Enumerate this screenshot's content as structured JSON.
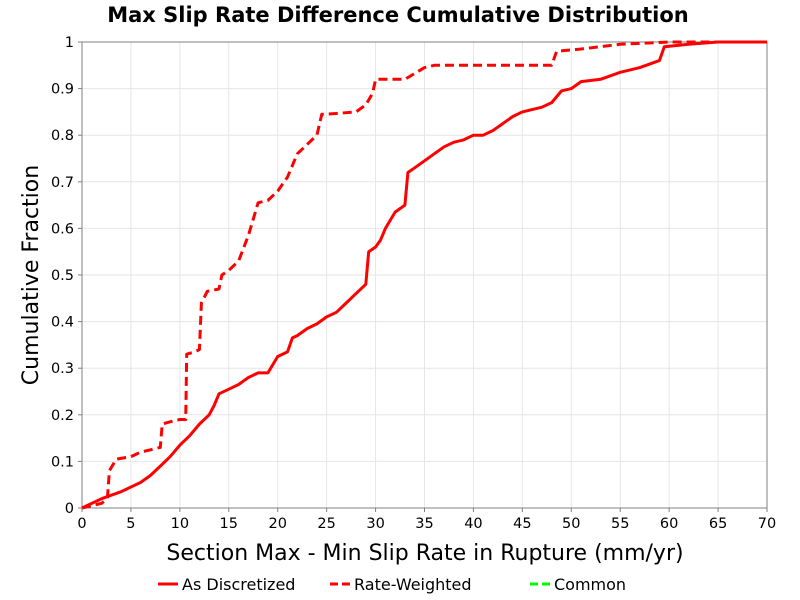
{
  "chart_data": {
    "type": "line",
    "title": "Max Slip Rate Difference Cumulative Distribution",
    "xlabel": "Section Max - Min Slip Rate in Rupture (mm/yr)",
    "ylabel": "Cumulative Fraction",
    "xlim": [
      0,
      70
    ],
    "ylim": [
      0,
      1
    ],
    "xticks": [
      "0",
      "5",
      "10",
      "15",
      "20",
      "25",
      "30",
      "35",
      "40",
      "45",
      "50",
      "55",
      "60",
      "65",
      "70"
    ],
    "yticks": [
      "0",
      "0.1",
      "0.2",
      "0.3",
      "0.4",
      "0.5",
      "0.6",
      "0.7",
      "0.8",
      "0.9",
      "1"
    ],
    "grid": true,
    "legend_position": "bottom",
    "series": [
      {
        "name": "As Discretized",
        "color": "#ff0000",
        "style": "solid",
        "points": [
          [
            0,
            0
          ],
          [
            2,
            0.02
          ],
          [
            4,
            0.035
          ],
          [
            6,
            0.055
          ],
          [
            7,
            0.07
          ],
          [
            8,
            0.09
          ],
          [
            9,
            0.11
          ],
          [
            10,
            0.135
          ],
          [
            11,
            0.155
          ],
          [
            12,
            0.18
          ],
          [
            13,
            0.2
          ],
          [
            13.5,
            0.22
          ],
          [
            14,
            0.245
          ],
          [
            15,
            0.255
          ],
          [
            16,
            0.265
          ],
          [
            17,
            0.28
          ],
          [
            18,
            0.29
          ],
          [
            19,
            0.29
          ],
          [
            20,
            0.325
          ],
          [
            21,
            0.335
          ],
          [
            21.5,
            0.365
          ],
          [
            22,
            0.37
          ],
          [
            23,
            0.385
          ],
          [
            24,
            0.395
          ],
          [
            25,
            0.41
          ],
          [
            26,
            0.42
          ],
          [
            27,
            0.44
          ],
          [
            28,
            0.46
          ],
          [
            29,
            0.48
          ],
          [
            29.3,
            0.55
          ],
          [
            30,
            0.56
          ],
          [
            30.5,
            0.575
          ],
          [
            31,
            0.6
          ],
          [
            32,
            0.635
          ],
          [
            33,
            0.65
          ],
          [
            33.3,
            0.72
          ],
          [
            34,
            0.73
          ],
          [
            35,
            0.745
          ],
          [
            36,
            0.76
          ],
          [
            37,
            0.775
          ],
          [
            38,
            0.785
          ],
          [
            39,
            0.79
          ],
          [
            40,
            0.8
          ],
          [
            41,
            0.8
          ],
          [
            42,
            0.81
          ],
          [
            43,
            0.825
          ],
          [
            44,
            0.84
          ],
          [
            45,
            0.85
          ],
          [
            46,
            0.855
          ],
          [
            47,
            0.86
          ],
          [
            48,
            0.87
          ],
          [
            49,
            0.895
          ],
          [
            50,
            0.9
          ],
          [
            51,
            0.915
          ],
          [
            53,
            0.92
          ],
          [
            55,
            0.935
          ],
          [
            57,
            0.945
          ],
          [
            59,
            0.96
          ],
          [
            59.5,
            0.99
          ],
          [
            62,
            0.995
          ],
          [
            65,
            1
          ],
          [
            70,
            1
          ]
        ]
      },
      {
        "name": "Rate-Weighted",
        "color": "#ff0000",
        "style": "dashed",
        "points": [
          [
            0,
            0
          ],
          [
            2,
            0.01
          ],
          [
            2.6,
            0.02
          ],
          [
            2.8,
            0.08
          ],
          [
            3.5,
            0.105
          ],
          [
            5,
            0.11
          ],
          [
            6,
            0.12
          ],
          [
            7,
            0.125
          ],
          [
            8,
            0.13
          ],
          [
            8.2,
            0.18
          ],
          [
            9,
            0.185
          ],
          [
            10,
            0.19
          ],
          [
            10.6,
            0.19
          ],
          [
            10.7,
            0.33
          ],
          [
            11.5,
            0.335
          ],
          [
            12,
            0.34
          ],
          [
            12.2,
            0.44
          ],
          [
            12.8,
            0.465
          ],
          [
            14,
            0.47
          ],
          [
            14.3,
            0.5
          ],
          [
            15,
            0.51
          ],
          [
            16,
            0.53
          ],
          [
            17,
            0.585
          ],
          [
            18,
            0.655
          ],
          [
            19,
            0.66
          ],
          [
            20,
            0.68
          ],
          [
            21,
            0.71
          ],
          [
            22,
            0.76
          ],
          [
            23,
            0.78
          ],
          [
            24,
            0.8
          ],
          [
            24.5,
            0.845
          ],
          [
            25,
            0.845
          ],
          [
            28,
            0.85
          ],
          [
            29,
            0.865
          ],
          [
            29.7,
            0.89
          ],
          [
            30,
            0.92
          ],
          [
            33,
            0.92
          ],
          [
            35,
            0.945
          ],
          [
            36,
            0.95
          ],
          [
            48,
            0.95
          ],
          [
            48.5,
            0.98
          ],
          [
            51,
            0.985
          ],
          [
            55,
            0.995
          ],
          [
            60,
            1
          ],
          [
            70,
            1
          ]
        ]
      },
      {
        "name": "Common",
        "color": "#00ff00",
        "style": "dashed",
        "points": []
      }
    ]
  }
}
